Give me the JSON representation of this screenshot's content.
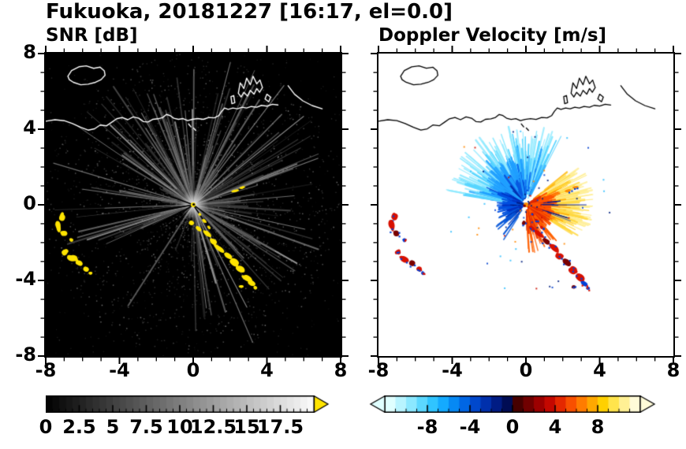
{
  "chart_data": {
    "type": "heatmap",
    "title": "Fukuoka, 20181227 [16:17, el=0.0]",
    "station": "Fukuoka",
    "date": "20181227",
    "time": "16:17",
    "elevation_deg": 0.0,
    "axes": {
      "xlim": [
        -8,
        8
      ],
      "ylim": [
        -8,
        8
      ],
      "xticks": [
        -8,
        -4,
        0,
        4,
        8
      ],
      "yticks": [
        8,
        4,
        0,
        -4,
        -8
      ],
      "minor_tick_step": 1
    },
    "panels": [
      {
        "id": "snr",
        "title": "SNR [dB]",
        "background": "#000000",
        "coast_color": "#ffffff",
        "colorbar": {
          "range": [
            0,
            20
          ],
          "segments": 40,
          "colormap": "grayscale",
          "tick_values": [
            0,
            2.5,
            5,
            7.5,
            10,
            12.5,
            15,
            17.5
          ],
          "tick_labels": [
            "0",
            "2.5",
            "5",
            "7.5",
            "10",
            "12.5",
            "15",
            "17.5"
          ],
          "over_arrow_color": "#ffe400"
        }
      },
      {
        "id": "doppler",
        "title": "Doppler Velocity [m/s]",
        "background": "#ffffff",
        "coast_color": "#000000",
        "colorbar": {
          "range": [
            -12,
            12
          ],
          "tick_values": [
            -8,
            -4,
            0,
            4,
            8
          ],
          "tick_labels": [
            "-8",
            "-4",
            "0",
            "4",
            "8"
          ],
          "segment_colors": [
            "#e0ffff",
            "#b8f4ff",
            "#8ce8ff",
            "#5cd8ff",
            "#30c4ff",
            "#14aaff",
            "#0689f4",
            "#0066e4",
            "#0048cc",
            "#0030ac",
            "#001c84",
            "#000c54",
            "#460000",
            "#700000",
            "#9c0000",
            "#c40800",
            "#e42800",
            "#f85000",
            "#ff7c00",
            "#ffa800",
            "#ffd000",
            "#ffe44c",
            "#fff094",
            "#fffbd8"
          ],
          "under_arrow_color": "#e0ffff",
          "over_arrow_color": "#fffbd8"
        }
      }
    ],
    "radar_center": [
      0,
      0
    ],
    "coastline": {
      "paths": [
        {
          "name": "main-coast",
          "close": false,
          "pts": [
            [
              -8,
              4.42
            ],
            [
              -7.5,
              4.5
            ],
            [
              -7.0,
              4.45
            ],
            [
              -6.55,
              4.3
            ],
            [
              -6.1,
              4.1
            ],
            [
              -5.7,
              3.95
            ],
            [
              -5.35,
              4.02
            ],
            [
              -5.05,
              4.22
            ],
            [
              -4.7,
              4.18
            ],
            [
              -4.4,
              4.38
            ],
            [
              -4.15,
              4.55
            ],
            [
              -3.85,
              4.62
            ],
            [
              -3.55,
              4.5
            ],
            [
              -3.25,
              4.65
            ],
            [
              -2.95,
              4.58
            ],
            [
              -2.7,
              4.4
            ],
            [
              -2.45,
              4.38
            ],
            [
              -2.2,
              4.52
            ],
            [
              -1.9,
              4.55
            ],
            [
              -1.65,
              4.62
            ],
            [
              -1.45,
              4.78
            ],
            [
              -1.25,
              4.72
            ],
            [
              -1.05,
              4.58
            ],
            [
              -0.8,
              4.52
            ],
            [
              -0.55,
              4.56
            ],
            [
              -0.3,
              4.45
            ],
            [
              -0.05,
              4.52
            ],
            [
              0.25,
              4.56
            ],
            [
              0.55,
              4.52
            ],
            [
              0.85,
              4.62
            ],
            [
              1.15,
              4.6
            ],
            [
              1.4,
              4.72
            ],
            [
              1.55,
              4.95
            ],
            [
              1.7,
              5.12
            ],
            [
              1.9,
              5.05
            ],
            [
              2.15,
              5.12
            ],
            [
              2.4,
              5.08
            ],
            [
              2.65,
              5.16
            ],
            [
              2.9,
              5.12
            ],
            [
              3.15,
              5.2
            ],
            [
              3.45,
              5.16
            ],
            [
              3.7,
              5.26
            ],
            [
              4.0,
              5.22
            ],
            [
              4.3,
              5.32
            ],
            [
              4.6,
              5.28
            ]
          ]
        },
        {
          "name": "island",
          "close": true,
          "pts": [
            [
              -6.8,
              6.8
            ],
            [
              -6.6,
              7.1
            ],
            [
              -6.2,
              7.3
            ],
            [
              -5.8,
              7.35
            ],
            [
              -5.4,
              7.22
            ],
            [
              -5.05,
              7.28
            ],
            [
              -4.82,
              7.08
            ],
            [
              -4.78,
              6.85
            ],
            [
              -5.0,
              6.62
            ],
            [
              -5.3,
              6.48
            ],
            [
              -5.7,
              6.38
            ],
            [
              -6.1,
              6.35
            ],
            [
              -6.5,
              6.48
            ],
            [
              -6.72,
              6.62
            ]
          ]
        },
        {
          "name": "harbor-pier-1",
          "close": true,
          "pts": [
            [
              2.1,
              5.35
            ],
            [
              2.05,
              5.72
            ],
            [
              2.2,
              5.78
            ],
            [
              2.26,
              5.4
            ]
          ]
        },
        {
          "name": "harbor-breakwater",
          "close": true,
          "pts": [
            [
              2.45,
              5.9
            ],
            [
              2.55,
              6.45
            ],
            [
              2.75,
              6.15
            ],
            [
              2.9,
              6.7
            ],
            [
              3.1,
              6.35
            ],
            [
              3.25,
              6.8
            ],
            [
              3.45,
              6.4
            ],
            [
              3.62,
              6.6
            ],
            [
              3.76,
              6.2
            ],
            [
              3.6,
              5.95
            ],
            [
              3.45,
              6.15
            ],
            [
              3.3,
              5.85
            ],
            [
              3.1,
              6.05
            ],
            [
              2.95,
              5.75
            ],
            [
              2.75,
              5.95
            ],
            [
              2.6,
              5.7
            ]
          ]
        },
        {
          "name": "harbor-pier-2",
          "close": true,
          "pts": [
            [
              3.9,
              5.6
            ],
            [
              4.0,
              5.85
            ],
            [
              4.2,
              5.7
            ],
            [
              4.1,
              5.45
            ]
          ]
        },
        {
          "name": "east-coast",
          "close": false,
          "pts": [
            [
              5.15,
              6.3
            ],
            [
              5.5,
              5.85
            ],
            [
              5.95,
              5.5
            ],
            [
              6.45,
              5.25
            ],
            [
              7.0,
              5.08
            ]
          ]
        },
        {
          "name": "coast-dash",
          "close": false,
          "pts": [
            [
              -0.25,
              4.28
            ],
            [
              -0.12,
              4.12
            ]
          ]
        },
        {
          "name": "coast-dash-2",
          "close": false,
          "pts": [
            [
              0.02,
              4.06
            ],
            [
              0.14,
              3.94
            ]
          ]
        }
      ]
    },
    "snr_field": {
      "seed": 1337,
      "speckle_near": 2600,
      "speckle_far": 500,
      "ray_count": 300,
      "bright_rays": [
        [
          38,
          7.6,
          150
        ],
        [
          52,
          8.0,
          135
        ],
        [
          63,
          6.8,
          120
        ],
        [
          20,
          7.2,
          140
        ],
        [
          5,
          5.5,
          120
        ],
        [
          -12,
          6.2,
          130
        ],
        [
          95,
          5.0,
          115
        ],
        [
          120,
          5.6,
          125
        ],
        [
          150,
          4.4,
          110
        ],
        [
          170,
          3.6,
          105
        ],
        [
          -30,
          4.2,
          115
        ],
        [
          75,
          7.8,
          130
        ],
        [
          108,
          4.6,
          118
        ],
        [
          -45,
          3.2,
          108
        ]
      ],
      "dark_wedges": [
        [
          186,
          192
        ],
        [
          206,
          211
        ],
        [
          225,
          230
        ]
      ],
      "black_rays": [
        {
          "az": -35,
          "len": 2.4
        },
        {
          "az": 215,
          "len": 1.8
        },
        {
          "az": 190,
          "len": 1.3
        },
        {
          "az": -55,
          "len": 2.9
        },
        {
          "az": 160,
          "len": 1.6
        }
      ],
      "echo_color": "#ffe400",
      "core_radius": 0.8
    },
    "doppler_field": {
      "seed": 777,
      "speck_count": 70,
      "speck_colors": [
        "#0040d0",
        "#cc1000",
        "#ff8800",
        "#30c0ff",
        "#002080"
      ],
      "velocity_colors": {
        "red": "#d81000",
        "darkred": "#7a0000",
        "blue": "#0040d8",
        "orange": "#ff8c00"
      },
      "sectors": [
        {
          "az": [
            62,
            172
          ],
          "rmin": 0.35,
          "rmax": 4.4,
          "count": 240,
          "w": [
            1.0,
            2.6
          ],
          "colors": [
            "#0030b8",
            "#0a6cf0",
            "#28aaff",
            "#55d4ff",
            "#90eaff"
          ]
        },
        {
          "az": [
            95,
            165
          ],
          "rmin": 0.3,
          "rmax": 2.6,
          "count": 120,
          "w": [
            1.2,
            3.0
          ],
          "colors": [
            "#0028a8",
            "#0858e0",
            "#20a0ff"
          ]
        },
        {
          "az": [
            150,
            220
          ],
          "rmin": 0.15,
          "rmax": 1.6,
          "count": 80,
          "w": [
            1.5,
            3.2
          ],
          "colors": [
            "#001878",
            "#0030c0",
            "#0050e0"
          ]
        },
        {
          "az": [
            205,
            237
          ],
          "rmin": 0.3,
          "rmax": 2.2,
          "count": 16,
          "w": [
            1.2,
            2.4
          ],
          "colors": [
            "#0030b0",
            "#0858d8"
          ]
        },
        {
          "az": [
            -32,
            38
          ],
          "rmin": 0.5,
          "rmax": 3.7,
          "count": 220,
          "w": [
            1.0,
            2.6
          ],
          "colors": [
            "#e83000",
            "#ff7000",
            "#ffaa00",
            "#ffd840",
            "#ffee90"
          ]
        },
        {
          "az": [
            -50,
            30
          ],
          "rmin": 0.12,
          "rmax": 1.7,
          "count": 150,
          "w": [
            1.2,
            2.8
          ],
          "colors": [
            "#b80800",
            "#e02800",
            "#ff5500"
          ]
        },
        {
          "az": [
            -88,
            -48
          ],
          "rmin": 0.25,
          "rmax": 2.6,
          "count": 55,
          "w": [
            1.0,
            2.2
          ],
          "colors": [
            "#c01000",
            "#e83000",
            "#ff6000"
          ]
        },
        {
          "az": [
            -22,
            8
          ],
          "rmin": 0.8,
          "rmax": 3.4,
          "count": 9,
          "w": [
            0.8,
            1.4
          ],
          "colors": [
            "#001890"
          ]
        }
      ]
    },
    "echo_blobs": {
      "west_cluster": [
        {
          "x": -7.15,
          "y": -0.65,
          "rx": 0.14,
          "ry": 0.2,
          "rot": -20,
          "v": "red"
        },
        {
          "x": -7.3,
          "y": -1.1,
          "rx": 0.13,
          "ry": 0.3,
          "rot": 10,
          "v": "red"
        },
        {
          "x": -7.05,
          "y": -1.5,
          "rx": 0.16,
          "ry": 0.14,
          "rot": 0,
          "v": "darkred"
        },
        {
          "x": -6.6,
          "y": -1.85,
          "rx": 0.11,
          "ry": 0.1,
          "rot": 0,
          "v": "blue"
        },
        {
          "x": -6.95,
          "y": -2.5,
          "rx": 0.17,
          "ry": 0.13,
          "rot": 30,
          "v": "red"
        },
        {
          "x": -6.55,
          "y": -2.85,
          "rx": 0.3,
          "ry": 0.14,
          "rot": -25,
          "v": "red"
        },
        {
          "x": -6.15,
          "y": -3.1,
          "rx": 0.18,
          "ry": 0.13,
          "rot": -20,
          "v": "darkred"
        },
        {
          "x": -5.8,
          "y": -3.4,
          "rx": 0.14,
          "ry": 0.11,
          "rot": -30,
          "v": "red"
        },
        {
          "x": -5.6,
          "y": -3.62,
          "rx": 0.1,
          "ry": 0.08,
          "rot": 0,
          "v": "blue"
        }
      ],
      "southeast_arc": [
        {
          "x": -0.1,
          "y": -0.95,
          "rx": 0.13,
          "ry": 0.1,
          "rot": -40,
          "v": "darkred"
        },
        {
          "x": 0.3,
          "y": -1.25,
          "rx": 0.16,
          "ry": 0.1,
          "rot": -40,
          "v": "red"
        },
        {
          "x": 0.7,
          "y": -1.55,
          "rx": 0.28,
          "ry": 0.11,
          "rot": -38,
          "v": "red"
        },
        {
          "x": 1.1,
          "y": -1.95,
          "rx": 0.2,
          "ry": 0.12,
          "rot": -40,
          "v": "darkred"
        },
        {
          "x": 1.45,
          "y": -2.3,
          "rx": 0.3,
          "ry": 0.13,
          "rot": -40,
          "v": "red"
        },
        {
          "x": 1.85,
          "y": -2.7,
          "rx": 0.22,
          "ry": 0.13,
          "rot": -35,
          "v": "red"
        },
        {
          "x": 2.2,
          "y": -3.05,
          "rx": 0.26,
          "ry": 0.14,
          "rot": -35,
          "v": "darkred"
        },
        {
          "x": 2.55,
          "y": -3.45,
          "rx": 0.24,
          "ry": 0.16,
          "rot": -30,
          "v": "red"
        },
        {
          "x": 2.9,
          "y": -3.85,
          "rx": 0.26,
          "ry": 0.15,
          "rot": -35,
          "v": "red"
        },
        {
          "x": 3.15,
          "y": -4.15,
          "rx": 0.18,
          "ry": 0.12,
          "rot": -35,
          "v": "blue"
        },
        {
          "x": 2.6,
          "y": -4.35,
          "rx": 0.12,
          "ry": 0.09,
          "rot": 0,
          "v": "darkred"
        },
        {
          "x": 3.35,
          "y": -4.4,
          "rx": 0.1,
          "ry": 0.08,
          "rot": 0,
          "v": "blue"
        }
      ],
      "northeast_dashes": [
        {
          "x": 2.3,
          "y": 0.75,
          "rx": 0.2,
          "ry": 0.06,
          "rot": 15,
          "v": "orange"
        },
        {
          "x": 2.7,
          "y": 0.92,
          "rx": 0.14,
          "ry": 0.05,
          "rot": 15,
          "v": "orange"
        }
      ],
      "center_streak": [
        {
          "x": 0.35,
          "y": -0.5,
          "rx": 0.1,
          "ry": 0.05,
          "rot": -52,
          "v": "red"
        },
        {
          "x": 0.6,
          "y": -0.85,
          "rx": 0.12,
          "ry": 0.05,
          "rot": -52,
          "v": "red"
        },
        {
          "x": 0.85,
          "y": -1.2,
          "rx": 0.1,
          "ry": 0.05,
          "rot": -52,
          "v": "red"
        }
      ]
    }
  }
}
